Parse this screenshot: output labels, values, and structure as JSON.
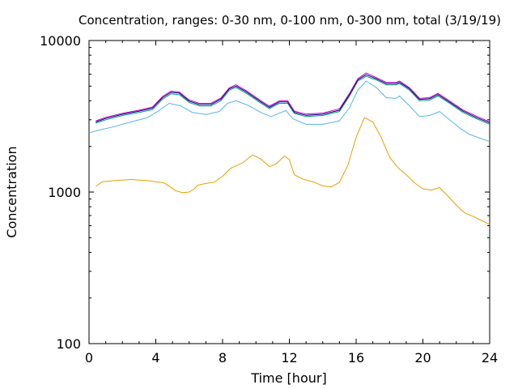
{
  "chart_data": {
    "type": "line",
    "title": "Concentration, ranges: 0-30 nm, 0-100 nm, 0-300 nm, total (3/19/19)",
    "xlabel": "Time [hour]",
    "ylabel": "Concentration",
    "xlim": [
      0,
      24
    ],
    "ylim": [
      100,
      10000
    ],
    "yscale": "log",
    "x_ticks": [
      0,
      4,
      8,
      12,
      16,
      20,
      24
    ],
    "x_minor_step": 1,
    "y_ticks": [
      100,
      1000,
      10000
    ],
    "grid": false,
    "legend": "none",
    "series": [
      {
        "color": "#e69f00",
        "points": [
          [
            0.4,
            1090
          ],
          [
            0.8,
            1170
          ],
          [
            1.5,
            1190
          ],
          [
            2.5,
            1210
          ],
          [
            3.5,
            1190
          ],
          [
            4.5,
            1150
          ],
          [
            5.2,
            1020
          ],
          [
            5.6,
            990
          ],
          [
            6.0,
            1000
          ],
          [
            6.3,
            1050
          ],
          [
            6.5,
            1110
          ],
          [
            7.0,
            1140
          ],
          [
            7.5,
            1160
          ],
          [
            8.0,
            1270
          ],
          [
            8.5,
            1440
          ],
          [
            9.2,
            1560
          ],
          [
            9.8,
            1760
          ],
          [
            10.3,
            1650
          ],
          [
            10.8,
            1470
          ],
          [
            11.2,
            1530
          ],
          [
            11.7,
            1730
          ],
          [
            12.0,
            1640
          ],
          [
            12.1,
            1510
          ],
          [
            12.3,
            1300
          ],
          [
            12.8,
            1220
          ],
          [
            13.5,
            1160
          ],
          [
            14.0,
            1100
          ],
          [
            14.5,
            1080
          ],
          [
            15.0,
            1160
          ],
          [
            15.5,
            1500
          ],
          [
            16.0,
            2300
          ],
          [
            16.5,
            3100
          ],
          [
            17.0,
            2900
          ],
          [
            17.5,
            2300
          ],
          [
            18.0,
            1700
          ],
          [
            18.5,
            1450
          ],
          [
            19.0,
            1300
          ],
          [
            19.5,
            1150
          ],
          [
            20.0,
            1050
          ],
          [
            20.5,
            1030
          ],
          [
            21.0,
            1070
          ],
          [
            21.5,
            940
          ],
          [
            22.0,
            820
          ],
          [
            22.5,
            730
          ],
          [
            23.0,
            690
          ],
          [
            23.5,
            650
          ],
          [
            24.0,
            610
          ]
        ]
      },
      {
        "color": "#56b4e9",
        "points": [
          [
            0,
            2450
          ],
          [
            0.5,
            2550
          ],
          [
            1.5,
            2700
          ],
          [
            2.5,
            2900
          ],
          [
            3.5,
            3100
          ],
          [
            4.2,
            3450
          ],
          [
            4.8,
            3850
          ],
          [
            5.5,
            3700
          ],
          [
            6.2,
            3350
          ],
          [
            7.0,
            3250
          ],
          [
            7.8,
            3400
          ],
          [
            8.3,
            3850
          ],
          [
            8.8,
            4000
          ],
          [
            9.5,
            3750
          ],
          [
            10.3,
            3350
          ],
          [
            10.9,
            3150
          ],
          [
            11.5,
            3350
          ],
          [
            11.8,
            3450
          ],
          [
            12.2,
            3050
          ],
          [
            13.0,
            2800
          ],
          [
            14.0,
            2800
          ],
          [
            15.0,
            2950
          ],
          [
            15.6,
            3600
          ],
          [
            16.1,
            4700
          ],
          [
            16.6,
            5400
          ],
          [
            17.2,
            4900
          ],
          [
            17.8,
            4200
          ],
          [
            18.4,
            4150
          ],
          [
            18.6,
            4300
          ],
          [
            19.2,
            3700
          ],
          [
            19.8,
            3150
          ],
          [
            20.4,
            3200
          ],
          [
            21.0,
            3400
          ],
          [
            21.6,
            3000
          ],
          [
            22.2,
            2650
          ],
          [
            22.8,
            2400
          ],
          [
            23.5,
            2250
          ],
          [
            24.0,
            2150
          ]
        ]
      },
      {
        "color": "#009e73",
        "points": [
          [
            0.4,
            2850
          ],
          [
            1.0,
            3000
          ],
          [
            2.0,
            3200
          ],
          [
            3.0,
            3350
          ],
          [
            3.8,
            3500
          ],
          [
            4.4,
            4100
          ],
          [
            4.9,
            4450
          ],
          [
            5.4,
            4400
          ],
          [
            6.0,
            3900
          ],
          [
            6.6,
            3700
          ],
          [
            7.3,
            3700
          ],
          [
            7.9,
            4000
          ],
          [
            8.4,
            4700
          ],
          [
            8.8,
            4900
          ],
          [
            9.4,
            4500
          ],
          [
            10.3,
            3850
          ],
          [
            10.8,
            3550
          ],
          [
            11.4,
            3850
          ],
          [
            11.9,
            3850
          ],
          [
            12.3,
            3300
          ],
          [
            13.0,
            3150
          ],
          [
            14.0,
            3200
          ],
          [
            15.0,
            3400
          ],
          [
            15.6,
            4300
          ],
          [
            16.1,
            5400
          ],
          [
            16.6,
            5800
          ],
          [
            17.2,
            5500
          ],
          [
            17.8,
            5100
          ],
          [
            18.4,
            5100
          ],
          [
            18.6,
            5200
          ],
          [
            19.2,
            4700
          ],
          [
            19.8,
            4000
          ],
          [
            20.4,
            4050
          ],
          [
            20.9,
            4300
          ],
          [
            21.6,
            3850
          ],
          [
            22.4,
            3350
          ],
          [
            23.2,
            3050
          ],
          [
            24.0,
            2800
          ]
        ]
      },
      {
        "color": "#000080",
        "points": [
          [
            0.4,
            2900
          ],
          [
            1.0,
            3060
          ],
          [
            2.0,
            3260
          ],
          [
            3.0,
            3420
          ],
          [
            3.8,
            3580
          ],
          [
            4.4,
            4200
          ],
          [
            4.9,
            4550
          ],
          [
            5.4,
            4500
          ],
          [
            6.0,
            3980
          ],
          [
            6.6,
            3780
          ],
          [
            7.3,
            3780
          ],
          [
            7.9,
            4100
          ],
          [
            8.4,
            4800
          ],
          [
            8.8,
            5000
          ],
          [
            9.4,
            4600
          ],
          [
            10.3,
            3930
          ],
          [
            10.8,
            3620
          ],
          [
            11.4,
            3930
          ],
          [
            11.9,
            3930
          ],
          [
            12.3,
            3360
          ],
          [
            13.0,
            3210
          ],
          [
            14.0,
            3260
          ],
          [
            15.0,
            3470
          ],
          [
            15.6,
            4400
          ],
          [
            16.1,
            5500
          ],
          [
            16.6,
            5950
          ],
          [
            17.2,
            5600
          ],
          [
            17.8,
            5200
          ],
          [
            18.4,
            5200
          ],
          [
            18.6,
            5300
          ],
          [
            19.2,
            4800
          ],
          [
            19.8,
            4080
          ],
          [
            20.4,
            4130
          ],
          [
            20.9,
            4400
          ],
          [
            21.6,
            3920
          ],
          [
            22.4,
            3420
          ],
          [
            23.2,
            3110
          ],
          [
            24.0,
            2860
          ]
        ]
      },
      {
        "color": "#cc00cc",
        "points": [
          [
            0.4,
            2950
          ],
          [
            1.0,
            3110
          ],
          [
            2.0,
            3310
          ],
          [
            3.0,
            3470
          ],
          [
            3.8,
            3640
          ],
          [
            4.4,
            4270
          ],
          [
            4.9,
            4630
          ],
          [
            5.4,
            4580
          ],
          [
            6.0,
            4050
          ],
          [
            6.6,
            3850
          ],
          [
            7.3,
            3850
          ],
          [
            7.9,
            4170
          ],
          [
            8.4,
            4880
          ],
          [
            8.8,
            5100
          ],
          [
            9.4,
            4680
          ],
          [
            10.3,
            4000
          ],
          [
            10.8,
            3690
          ],
          [
            11.4,
            4000
          ],
          [
            11.9,
            4000
          ],
          [
            12.3,
            3420
          ],
          [
            13.0,
            3270
          ],
          [
            14.0,
            3320
          ],
          [
            15.0,
            3540
          ],
          [
            15.6,
            4480
          ],
          [
            16.1,
            5600
          ],
          [
            16.6,
            6100
          ],
          [
            17.2,
            5700
          ],
          [
            17.8,
            5300
          ],
          [
            18.4,
            5300
          ],
          [
            18.6,
            5400
          ],
          [
            19.2,
            4880
          ],
          [
            19.8,
            4150
          ],
          [
            20.4,
            4200
          ],
          [
            20.9,
            4480
          ],
          [
            21.6,
            3990
          ],
          [
            22.4,
            3480
          ],
          [
            23.2,
            3170
          ],
          [
            24.0,
            2910
          ]
        ]
      }
    ]
  }
}
